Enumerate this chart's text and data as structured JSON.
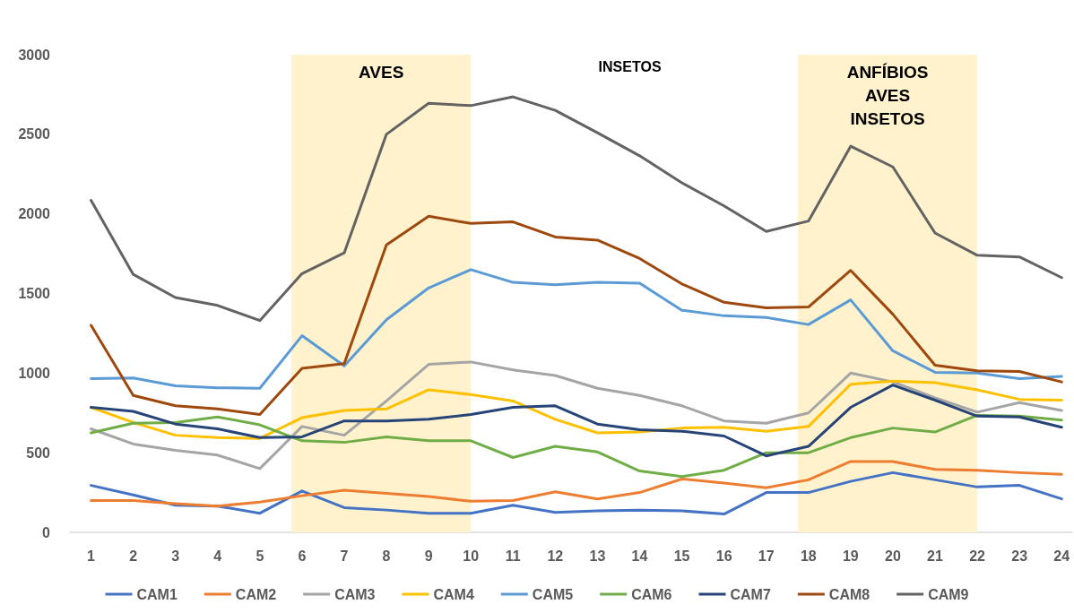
{
  "chart_data": {
    "type": "line",
    "x": [
      1,
      2,
      3,
      4,
      5,
      6,
      7,
      8,
      9,
      10,
      11,
      12,
      13,
      14,
      15,
      16,
      17,
      18,
      19,
      20,
      21,
      22,
      23,
      24
    ],
    "xlim": [
      0.5,
      24.25
    ],
    "xticks": [
      1,
      2,
      3,
      4,
      5,
      6,
      7,
      8,
      9,
      10,
      11,
      12,
      13,
      14,
      15,
      16,
      17,
      18,
      19,
      20,
      21,
      22,
      23,
      24
    ],
    "ylim": [
      0,
      3000
    ],
    "yticks": [
      0,
      500,
      1000,
      1500,
      2000,
      2500,
      3000
    ],
    "grid": false,
    "legend": "bottom",
    "marker": "none",
    "line_style": "solid",
    "series": [
      {
        "name": "CAM1",
        "color": "#4472c4",
        "values": [
          295,
          235,
          170,
          165,
          120,
          260,
          155,
          140,
          120,
          120,
          170,
          125,
          135,
          140,
          135,
          115,
          250,
          250,
          320,
          375,
          330,
          285,
          295,
          210
        ]
      },
      {
        "name": "CAM2",
        "color": "#ed7d31",
        "values": [
          200,
          200,
          180,
          165,
          190,
          230,
          265,
          245,
          225,
          195,
          200,
          255,
          210,
          250,
          335,
          310,
          280,
          330,
          445,
          445,
          395,
          390,
          375,
          365
        ]
      },
      {
        "name": "CAM3",
        "color": "#a5a5a5",
        "values": [
          650,
          555,
          515,
          485,
          400,
          665,
          610,
          825,
          1055,
          1070,
          1020,
          985,
          905,
          860,
          795,
          700,
          685,
          750,
          1000,
          945,
          845,
          755,
          815,
          765
        ]
      },
      {
        "name": "CAM4",
        "color": "#ffc000",
        "values": [
          785,
          690,
          610,
          595,
          590,
          720,
          765,
          775,
          895,
          865,
          825,
          710,
          625,
          630,
          655,
          660,
          635,
          665,
          930,
          950,
          940,
          895,
          835,
          830
        ]
      },
      {
        "name": "CAM5",
        "color": "#5b9bd5",
        "values": [
          965,
          970,
          920,
          908,
          905,
          1235,
          1045,
          1335,
          1535,
          1650,
          1570,
          1555,
          1570,
          1565,
          1395,
          1360,
          1350,
          1305,
          1460,
          1140,
          1005,
          1000,
          965,
          980
        ]
      },
      {
        "name": "CAM6",
        "color": "#70ad47",
        "values": [
          625,
          685,
          690,
          725,
          675,
          575,
          565,
          600,
          575,
          575,
          470,
          540,
          505,
          385,
          350,
          390,
          500,
          500,
          595,
          655,
          630,
          735,
          730,
          705
        ]
      },
      {
        "name": "CAM7",
        "color": "#264478",
        "values": [
          785,
          760,
          680,
          650,
          595,
          600,
          700,
          700,
          710,
          740,
          785,
          795,
          680,
          645,
          635,
          605,
          480,
          540,
          785,
          925,
          830,
          730,
          725,
          660
        ]
      },
      {
        "name": "CAM8",
        "color": "#9e480e",
        "values": [
          1300,
          860,
          795,
          775,
          740,
          1030,
          1060,
          1805,
          1985,
          1940,
          1950,
          1855,
          1835,
          1720,
          1560,
          1445,
          1410,
          1415,
          1645,
          1370,
          1050,
          1015,
          1010,
          945
        ]
      },
      {
        "name": "CAM9",
        "color": "#636363",
        "values": [
          2085,
          1620,
          1475,
          1425,
          1330,
          1625,
          1755,
          2500,
          2695,
          2680,
          2735,
          2650,
          2510,
          2365,
          2195,
          2050,
          1890,
          1955,
          2425,
          2295,
          1880,
          1740,
          1730,
          1600
        ]
      }
    ],
    "bands": [
      {
        "axis": "x",
        "from": 5.75,
        "to": 10,
        "label": "AVES",
        "color": "#fff2cc"
      },
      {
        "axis": "x",
        "from": 17.75,
        "to": 22,
        "label": "ANFÍBIOS\nAVES\nINSETOS",
        "color": "#fff2cc"
      }
    ],
    "annotations": [
      "INSETOS"
    ]
  }
}
